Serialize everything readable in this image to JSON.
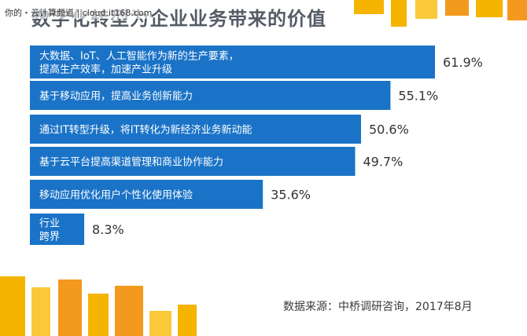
{
  "title": "数字化转型为企业业务带来的价值",
  "watermark": "你的・云计算频道 | cloud.it168.com",
  "source": "数据来源：中桥调研咨询，2017年8月",
  "colors": {
    "bar": "#1a73c7",
    "accent_yellow": "#f5b400",
    "accent_orange": "#f39a1e"
  },
  "chart_data": {
    "type": "bar",
    "orientation": "horizontal",
    "title": "数字化转型为企业业务带来的价值",
    "unit": "%",
    "categories": [
      [
        "大数据、IoT、人工智能作为新的生产要素，",
        "提高生产效率，加速产业升级"
      ],
      [
        "基于移动应用，提高业务创新能力"
      ],
      [
        "通过IT转型升级，将IT转化为新经济业务新动能"
      ],
      [
        "基于云平台提高渠道管理和商业协作能力"
      ],
      [
        "移动应用优化用户个性化使用体验"
      ],
      [
        "行业",
        "跨界"
      ]
    ],
    "values": [
      61.9,
      55.1,
      50.6,
      49.7,
      35.6,
      8.3
    ],
    "value_labels": [
      "61.9%",
      "55.1%",
      "50.6%",
      "49.7%",
      "35.6%",
      "8.3%"
    ],
    "xlim": [
      0,
      61.9
    ]
  }
}
